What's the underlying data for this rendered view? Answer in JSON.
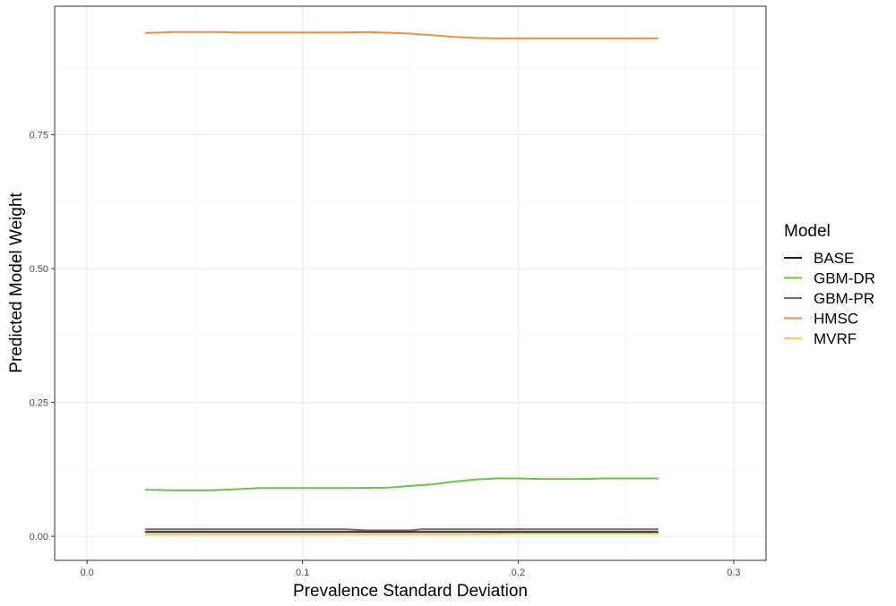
{
  "chart_data": {
    "type": "line",
    "title": "",
    "xlabel": "Prevalence Standard Deviation",
    "ylabel": "Predicted Model Weight",
    "xlim": [
      -0.015,
      0.315
    ],
    "ylim": [
      -0.045,
      0.99
    ],
    "x_ticks": [
      0.0,
      0.1,
      0.2,
      0.3
    ],
    "x_tick_labels": [
      "0.0",
      "0.1",
      "0.2",
      "0.3"
    ],
    "y_ticks": [
      0.0,
      0.25,
      0.5,
      0.75
    ],
    "y_tick_labels": [
      "0.00",
      "0.25",
      "0.50",
      "0.75"
    ],
    "grid": true,
    "legend": {
      "title": "Model",
      "position": "right"
    },
    "series": [
      {
        "name": "BASE",
        "color": "#0d2438",
        "x": [
          0.027,
          0.05,
          0.1,
          0.15,
          0.2,
          0.25,
          0.265
        ],
        "y": [
          0.008,
          0.008,
          0.008,
          0.008,
          0.008,
          0.008,
          0.008
        ]
      },
      {
        "name": "GBM-DR",
        "color": "#6bc24c",
        "x": [
          0.027,
          0.04,
          0.058,
          0.07,
          0.08,
          0.1,
          0.12,
          0.14,
          0.15,
          0.16,
          0.17,
          0.18,
          0.19,
          0.2,
          0.21,
          0.22,
          0.23,
          0.24,
          0.25,
          0.265
        ],
        "y": [
          0.087,
          0.086,
          0.086,
          0.088,
          0.09,
          0.09,
          0.09,
          0.091,
          0.094,
          0.097,
          0.102,
          0.106,
          0.108,
          0.108,
          0.107,
          0.107,
          0.107,
          0.108,
          0.108,
          0.108
        ]
      },
      {
        "name": "GBM-PR",
        "color": "#8b5a73",
        "x": [
          0.027,
          0.05,
          0.1,
          0.12,
          0.13,
          0.15,
          0.155,
          0.2,
          0.25,
          0.265
        ],
        "y": [
          0.013,
          0.013,
          0.013,
          0.013,
          0.011,
          0.011,
          0.013,
          0.013,
          0.013,
          0.013
        ]
      },
      {
        "name": "HMSC",
        "color": "#e8914b",
        "x": [
          0.027,
          0.04,
          0.06,
          0.07,
          0.1,
          0.12,
          0.13,
          0.15,
          0.16,
          0.17,
          0.18,
          0.19,
          0.2,
          0.22,
          0.25,
          0.265
        ],
        "y": [
          0.94,
          0.942,
          0.942,
          0.941,
          0.941,
          0.941,
          0.942,
          0.939,
          0.936,
          0.933,
          0.931,
          0.93,
          0.93,
          0.93,
          0.93,
          0.93
        ]
      },
      {
        "name": "MVRF",
        "color": "#f4d03f",
        "x": [
          0.027,
          0.05,
          0.1,
          0.15,
          0.175,
          0.2,
          0.25,
          0.265
        ],
        "y": [
          0.003,
          0.003,
          0.003,
          0.003,
          0.003,
          0.005,
          0.005,
          0.005
        ]
      }
    ]
  }
}
